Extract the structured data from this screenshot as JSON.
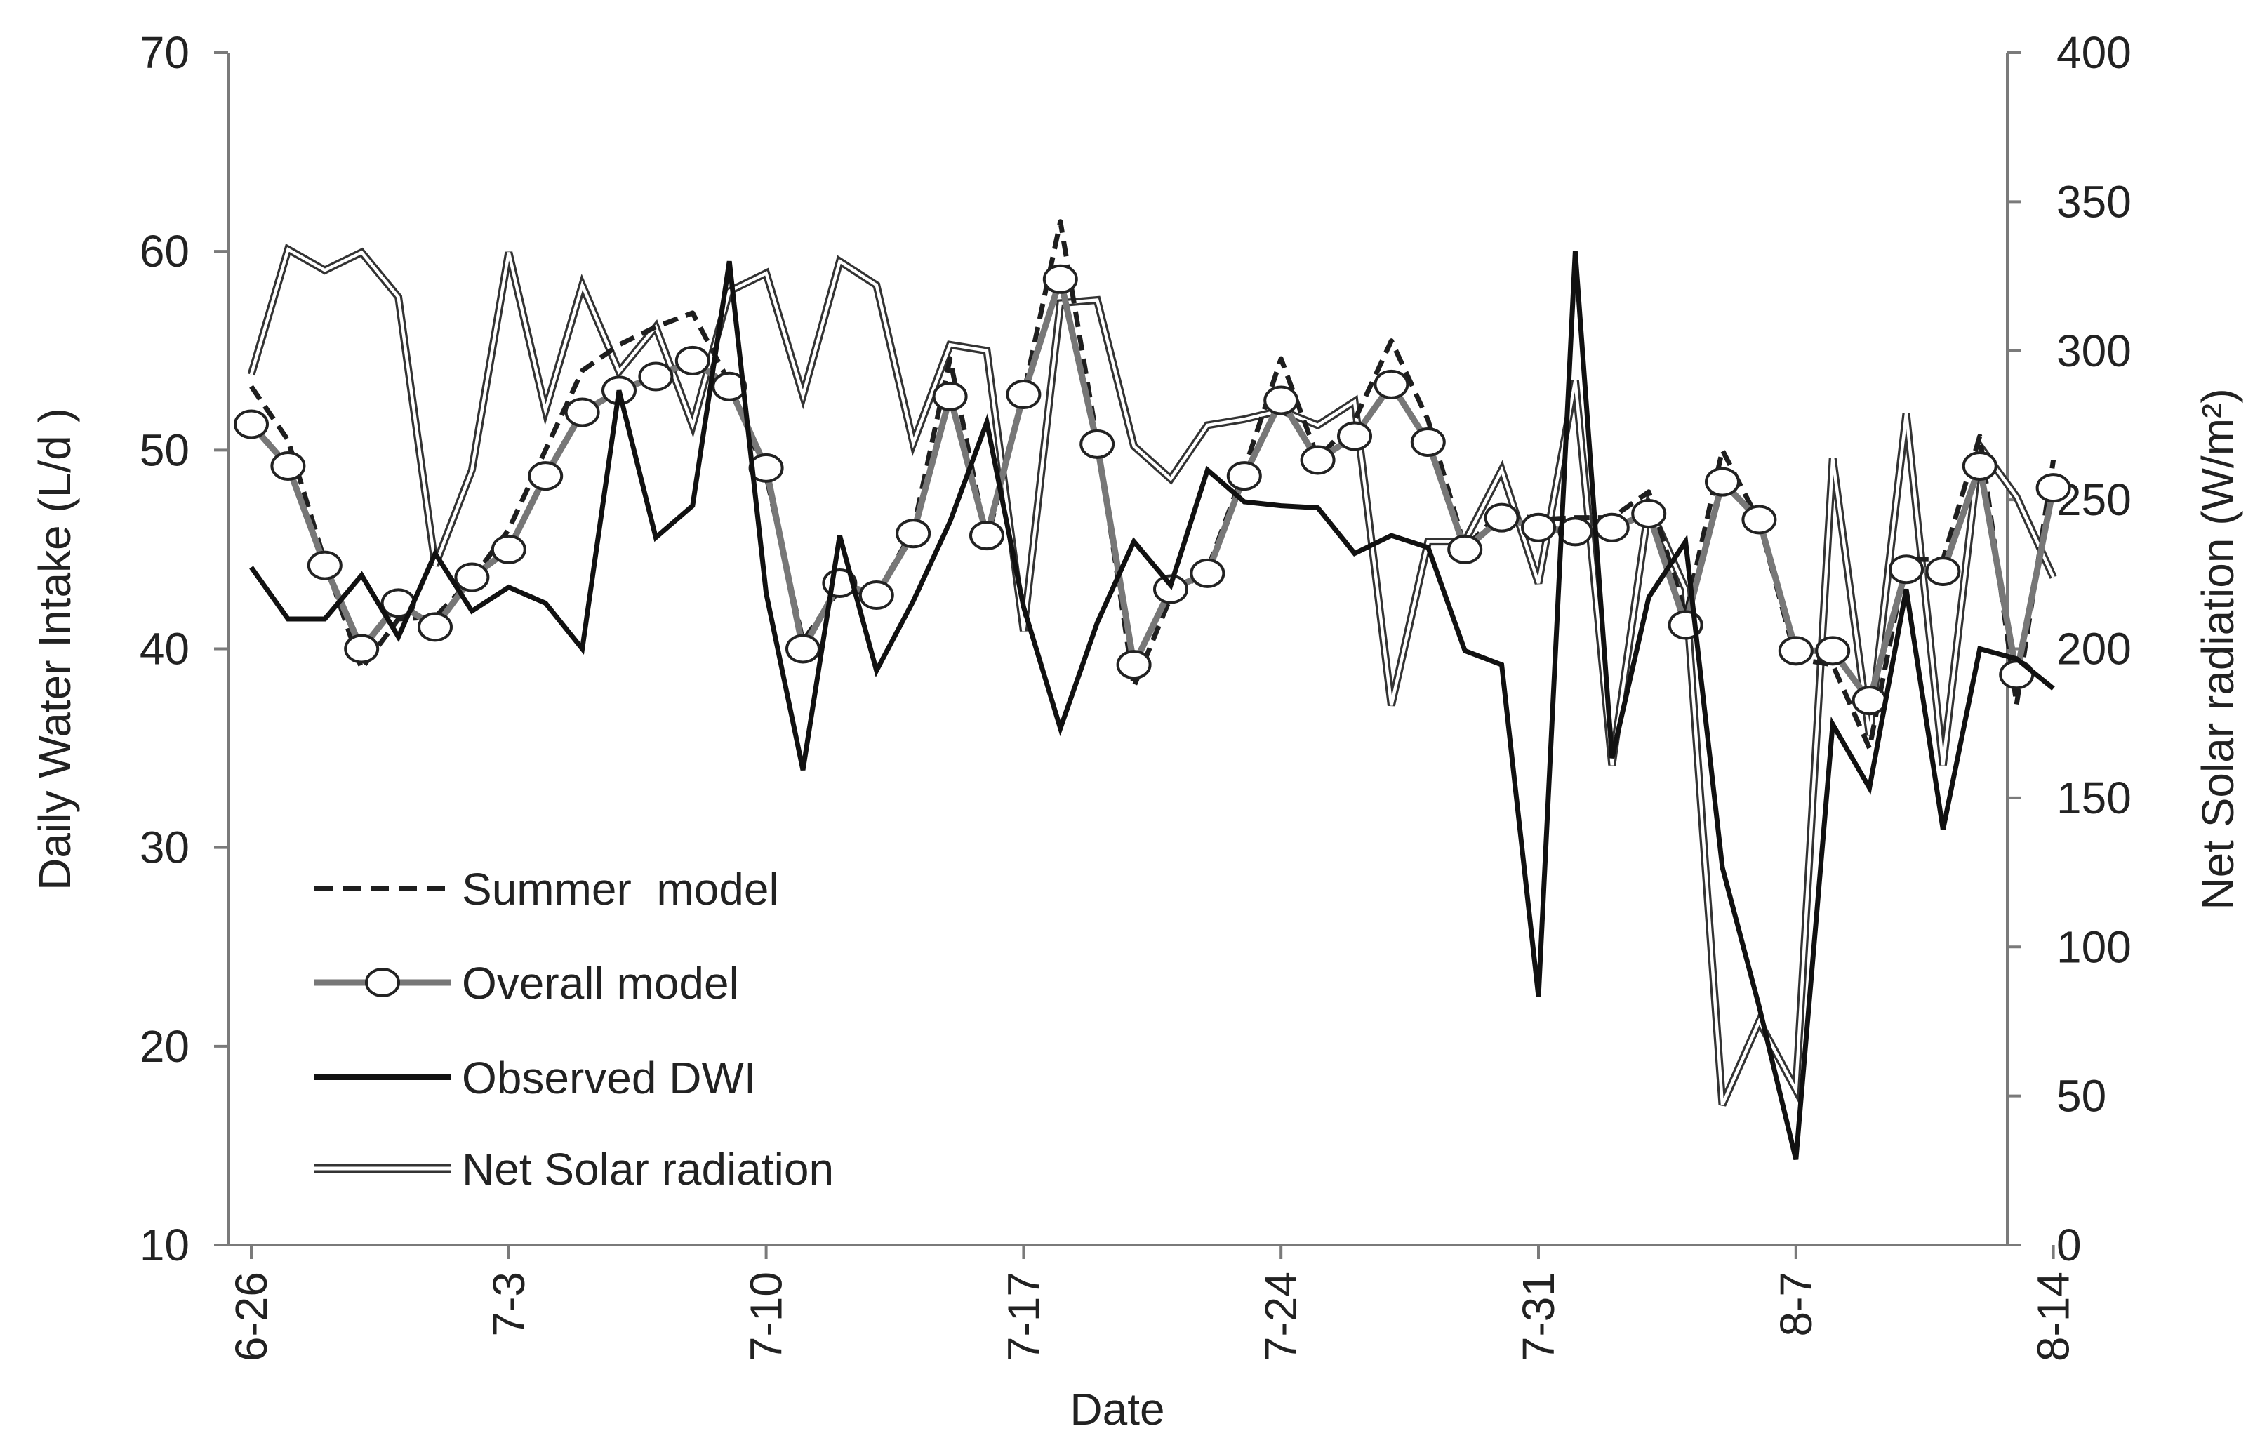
{
  "chart_data": {
    "type": "line",
    "xlabel": "Date",
    "ylabel": "Daily Water Intake (L/d )",
    "y2label": "Net Solar radiation (W/m²)",
    "ylim": [
      10,
      70
    ],
    "y2lim": [
      0,
      400
    ],
    "yticks": [
      10,
      20,
      30,
      40,
      50,
      60,
      70
    ],
    "y2ticks": [
      0,
      50,
      100,
      150,
      200,
      250,
      300,
      350,
      400
    ],
    "xlim": [
      0,
      49.5
    ],
    "xticks": [
      {
        "pos": 0,
        "label": "6-26"
      },
      {
        "pos": 7,
        "label": "7-3"
      },
      {
        "pos": 14,
        "label": "7-10"
      },
      {
        "pos": 21,
        "label": "7-17"
      },
      {
        "pos": 28,
        "label": "7-24"
      },
      {
        "pos": 35,
        "label": "7-31"
      },
      {
        "pos": 42,
        "label": "8-7"
      },
      {
        "pos": 49,
        "label": "8-14"
      }
    ],
    "legend": [
      "Summer  model",
      "Overall model",
      "Observed DWI",
      "Net Solar radiation"
    ],
    "legend_position": "lower-left",
    "series": [
      {
        "name": "Summer  model",
        "axis": "left",
        "style": "dashed",
        "color": "#1e1e1e",
        "values": [
          53.2,
          50.5,
          44.4,
          39.0,
          41.5,
          41.6,
          43.5,
          46.0,
          50.0,
          54.0,
          55.3,
          56.2,
          56.9,
          53.4,
          48.7,
          40.4,
          43.0,
          42.7,
          46.0,
          54.6,
          45.4,
          52.8,
          61.5,
          50.5,
          38.1,
          42.6,
          44.0,
          49.0,
          54.6,
          49.6,
          51.5,
          55.5,
          51.5,
          45.1,
          46.9,
          46.5,
          46.6,
          46.6,
          47.9,
          41.7,
          50.0,
          46.4,
          39.5,
          39.2,
          35.0,
          44.5,
          44.5,
          50.7,
          37.2,
          49.5
        ]
      },
      {
        "name": "Overall model",
        "axis": "left",
        "style": "marker",
        "color": "#777777",
        "values": [
          51.3,
          49.2,
          44.2,
          40.0,
          42.3,
          41.1,
          43.6,
          45.0,
          48.7,
          51.9,
          53.0,
          53.7,
          54.5,
          53.2,
          49.1,
          40.0,
          43.3,
          42.7,
          45.8,
          52.7,
          45.7,
          52.8,
          58.6,
          50.3,
          39.2,
          43.0,
          43.8,
          48.7,
          52.5,
          49.5,
          50.7,
          53.3,
          50.4,
          45.0,
          46.6,
          46.1,
          45.9,
          46.1,
          46.8,
          41.2,
          48.4,
          46.5,
          39.9,
          39.9,
          37.4,
          44.0,
          43.9,
          49.2,
          38.7,
          48.1
        ]
      },
      {
        "name": "Observed DWI",
        "axis": "left",
        "style": "solid",
        "color": "#111111",
        "values": [
          44.1,
          41.5,
          41.5,
          43.7,
          40.6,
          44.8,
          41.9,
          43.1,
          42.3,
          40.0,
          53.0,
          45.6,
          47.2,
          59.5,
          42.8,
          33.9,
          45.7,
          38.9,
          42.4,
          46.4,
          51.4,
          42.1,
          36.0,
          41.3,
          45.4,
          43.2,
          49.0,
          47.4,
          47.2,
          47.1,
          44.8,
          45.7,
          45.1,
          39.9,
          39.2,
          22.5,
          60.0,
          34.5,
          42.6,
          45.4,
          29.0,
          22.0,
          14.3,
          36.2,
          33.0,
          43.0,
          30.9,
          40.0,
          39.5,
          38.0
        ]
      },
      {
        "name": "Net Solar radiation",
        "axis": "right",
        "style": "double",
        "color": "#333333",
        "values": [
          292,
          334,
          327,
          333,
          318,
          228,
          260,
          333,
          280,
          322,
          293,
          308,
          275,
          320,
          326,
          285,
          330,
          322,
          269,
          302,
          300,
          206,
          316,
          317,
          268,
          257,
          275,
          277,
          280,
          275,
          283,
          181,
          236,
          236,
          260,
          222,
          290,
          161,
          248,
          220,
          47,
          75,
          52,
          264,
          171,
          279,
          161,
          268,
          251,
          224
        ]
      }
    ]
  }
}
